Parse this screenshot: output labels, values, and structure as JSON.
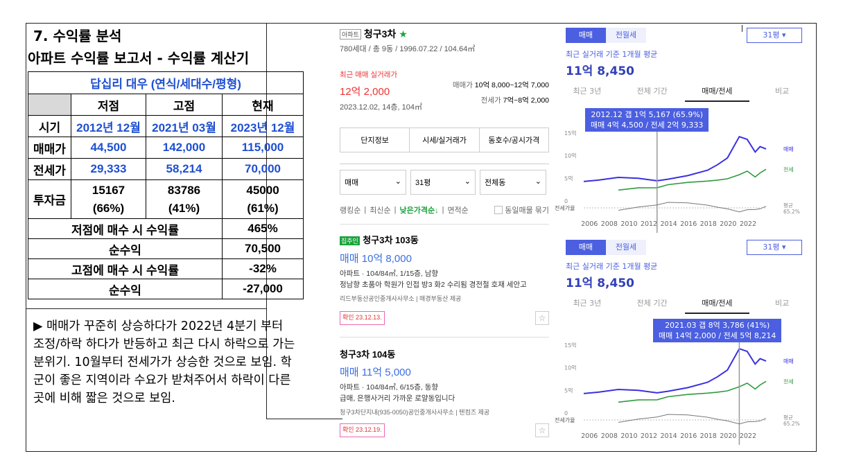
{
  "section_title": "7. 수익률 분석",
  "report_title": "아파트 수익률 보고서 - 수익률 계산기",
  "table": {
    "name": "답십리 대우 (연식/세대수/평형)",
    "headers": [
      "저점",
      "고점",
      "현재"
    ],
    "rows": [
      {
        "label": "시기",
        "values": [
          "2012년 12월",
          "2021년 03월",
          "2023년 12월"
        ]
      },
      {
        "label": "매매가",
        "values": [
          "44,500",
          "142,000",
          "115,000"
        ]
      },
      {
        "label": "전세가",
        "values": [
          "29,333",
          "58,214",
          "70,000"
        ]
      }
    ],
    "invest": {
      "label": "투자금",
      "values": [
        "15167",
        "83786",
        "45000"
      ],
      "pcts": [
        "(66%)",
        "(41%)",
        "(61%)"
      ]
    },
    "summary": [
      {
        "label": "저점에 매수 시 수익률",
        "value": "465%"
      },
      {
        "label": "순수익",
        "value": "70,500"
      },
      {
        "label": "고점에 매수 시 수익률",
        "value": "-32%"
      },
      {
        "label": "순수익",
        "value": "-27,000"
      }
    ]
  },
  "note": "▶ 매매가 꾸준히 상승하다가 2022년 4분기 부터 조정/하락 하다가 반등하고 최근 다시 하락으로 가는 분위기. 10월부터 전세가가 상승한 것으로 보임. 학군이 좋은 지역이라 수요가 받쳐주어서 하락이 다른 곳에 비해 짧은 것으로 보임.",
  "listing": {
    "tag": "아파트",
    "name": "청구3차",
    "info": "780세대 / 총 9동 / 1996.07.22 / 104.64㎡",
    "recent_label": "최근 매매 실거래가",
    "recent_price": "12억 2,000",
    "recent_date": "2023.12.02, 14층, 104㎡",
    "sale_range_label": "매매가",
    "sale_range": "10억 8,000~12억 7,000",
    "jeonse_range_label": "전세가",
    "jeonse_range": "7억~8억 2,000",
    "buttons": [
      "단지정보",
      "시세/실거래가",
      "동호수/공시가격"
    ],
    "selects": [
      "매매",
      "31평",
      "전체동"
    ],
    "sorts": [
      "랭킹순",
      "최신순",
      "낮은가격순↓",
      "면적순"
    ],
    "same_listing": "동일매물 묶기",
    "items": [
      {
        "badge": "집주인",
        "title": "청구3차 103동",
        "price": "매매 10억 8,000",
        "spec": "아파트 · 104/84㎡, 1/15층, 남향",
        "desc": "정남향 초품아 학원가 인접 방3 화2 수리됨 경전철 호재 세안고",
        "agent": "리드부동산공인중개사사무소 | 매경부동산 제공",
        "confirm": "확인 23.12.13."
      },
      {
        "badge": "",
        "title": "청구3차 104동",
        "price": "매매 11억 5,000",
        "spec": "아파트 · 104/84㎡, 6/15층, 동향",
        "desc": "급매, 은행사거리 가까운 로얄동입니다",
        "agent": "청구3차단지내(935-0050)공인중개사사무소 | 텐컴즈 제공",
        "confirm": "확인 23.12.19."
      }
    ]
  },
  "charts": [
    {
      "toggle": [
        "매매",
        "전월세"
      ],
      "pyeong": "31평",
      "avg_label": "최근 실거래 기준 1개월 평균",
      "avg_value": "11억 8,450",
      "tabs": [
        "최근 3년",
        "전체 기간",
        "매매/전세",
        "비교"
      ],
      "tooltip": [
        "2012.12  갭 1억 5,167 (65.9%)",
        "매매 4억 4,500 / 전세 2억 9,333"
      ]
    },
    {
      "toggle": [
        "매매",
        "전월세"
      ],
      "pyeong": "31평",
      "avg_label": "최근 실거래 기준 1개월 평균",
      "avg_value": "11억 8,450",
      "tabs": [
        "최근 3년",
        "전체 기간",
        "매매/전세",
        "비교"
      ],
      "tooltip": [
        "2021.03  갭 8억 3,786 (41%)",
        "매매 14억 2,000 / 전세 5억 8,214"
      ]
    }
  ],
  "chart_data": [
    {
      "type": "line",
      "x": [
        2005.5,
        2007,
        2009,
        2011,
        2012.9,
        2014,
        2016,
        2018,
        2019,
        2020,
        2021.2,
        2022,
        2022.8,
        2023.3,
        2023.9
      ],
      "series": [
        {
          "name": "매매",
          "values": [
            4.3,
            4.6,
            5.2,
            5.0,
            4.45,
            4.8,
            5.6,
            6.8,
            8.0,
            9.5,
            14.2,
            13.6,
            10.8,
            12.0,
            11.5
          ]
        },
        {
          "name": "전세",
          "values": [
            null,
            null,
            2.4,
            2.9,
            2.93,
            3.6,
            4.1,
            4.4,
            4.6,
            4.9,
            5.8,
            6.6,
            5.3,
            6.2,
            7.0
          ]
        }
      ],
      "yticks": [
        "0",
        "5억",
        "10억",
        "15억"
      ],
      "xticks": [
        "2006",
        "2008",
        "2010",
        "2012",
        "2014",
        "2016",
        "2018",
        "2020",
        "2022"
      ],
      "ylim": [
        0,
        15
      ],
      "gap_label": "전세가율",
      "avg_label": [
        "평균",
        "65.2%"
      ]
    },
    {
      "type": "line",
      "x": [
        2005.5,
        2007,
        2009,
        2011,
        2012.9,
        2014,
        2016,
        2018,
        2019,
        2020,
        2021.2,
        2022,
        2022.8,
        2023.3,
        2023.9
      ],
      "series": [
        {
          "name": "매매",
          "values": [
            4.3,
            4.6,
            5.2,
            5.0,
            4.45,
            4.8,
            5.6,
            6.8,
            8.0,
            9.5,
            14.2,
            13.6,
            10.8,
            12.0,
            11.5
          ]
        },
        {
          "name": "전세",
          "values": [
            null,
            null,
            2.4,
            2.9,
            2.93,
            3.6,
            4.1,
            4.4,
            4.6,
            4.9,
            5.8,
            6.6,
            5.3,
            6.2,
            7.0
          ]
        }
      ],
      "yticks": [
        "0",
        "5억",
        "10억",
        "15억"
      ],
      "xticks": [
        "2006",
        "2008",
        "2010",
        "2012",
        "2014",
        "2016",
        "2018",
        "2020",
        "2022"
      ],
      "ylim": [
        0,
        15
      ],
      "gap_label": "전세가율",
      "avg_label": [
        "평균",
        "65.2%"
      ]
    }
  ]
}
